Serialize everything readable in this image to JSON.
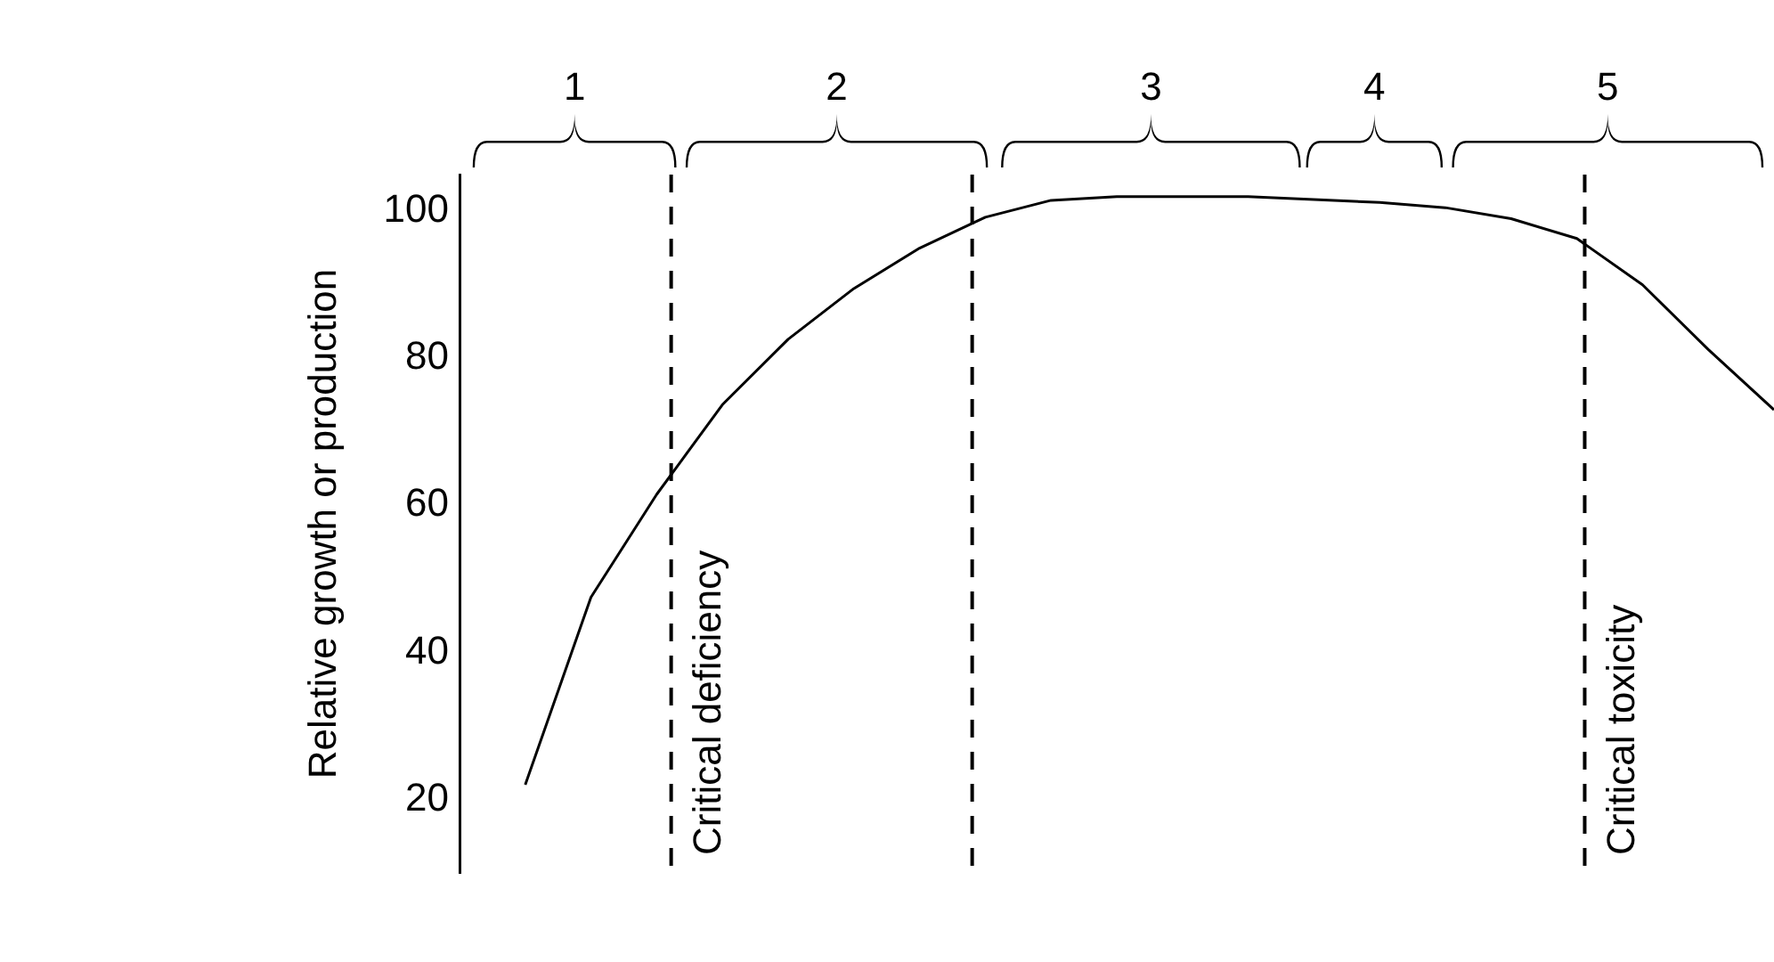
{
  "chart_data": {
    "type": "line",
    "ylabel": "Relative growth or production",
    "categories": [
      null,
      null,
      null,
      null,
      null,
      null,
      null,
      null,
      null,
      null,
      null,
      null,
      null,
      null,
      null,
      null,
      null,
      null,
      null,
      null,
      null
    ],
    "series": [
      {
        "color": "#000000",
        "values": [
          null,
          22,
          47.5,
          61.5,
          73.7,
          82.6,
          89.5,
          95,
          99.2,
          101.5,
          102,
          102,
          102,
          101.6,
          101.2,
          100.5,
          99,
          96.3,
          90,
          81.2,
          73
        ]
      }
    ],
    "ylim": [
      10,
      105
    ],
    "yticks": [
      20,
      40,
      60,
      80,
      100
    ],
    "tick_labels": "y",
    "grid": false,
    "legend": false,
    "marker": "none",
    "line_style": "solid",
    "annotations": [
      "1",
      "2",
      "3",
      "4",
      "5",
      "Critical deficiency",
      "Critical toxicity"
    ]
  }
}
